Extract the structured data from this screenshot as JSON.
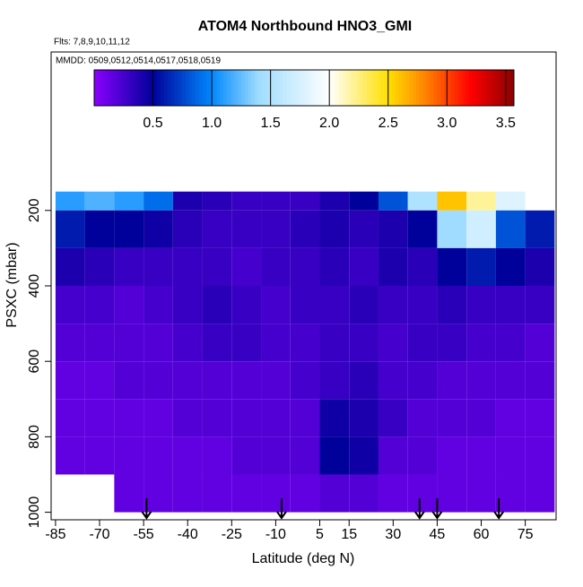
{
  "chart_data": {
    "type": "heatmap",
    "title": "ATOM4 Northbound HNO3_GMI",
    "subtitle": "Flts: 7,8,9,10,11,12",
    "annotation": "MMDD: 0509,0512,0514,0517,0518,0519",
    "x_label": "Latitude (deg N)",
    "y_label": "PSXC (mbar)",
    "xlim": [
      -86.5,
      85.5
    ],
    "xticks": [
      -85,
      -70,
      -55,
      -40,
      -25,
      -10,
      5,
      15,
      30,
      45,
      60,
      75
    ],
    "ylim": [
      1020,
      -220
    ],
    "yticks": [
      200,
      400,
      600,
      800,
      1000
    ],
    "x_edges": [
      -85,
      -75,
      -65,
      -55,
      -45,
      -35,
      -25,
      -15,
      -5,
      5,
      15,
      25,
      35,
      45,
      55,
      65,
      75,
      85
    ],
    "y_edges": [
      150,
      200,
      300,
      400,
      500,
      600,
      700,
      800,
      900,
      1000
    ],
    "z": [
      [
        1.1,
        1.2,
        1.1,
        0.9,
        0.4,
        0.35,
        0.3,
        0.3,
        0.3,
        0.4,
        0.5,
        0.8,
        1.5,
        2.6,
        2.2,
        1.8,
        null
      ],
      [
        0.6,
        0.5,
        0.5,
        0.45,
        0.35,
        0.3,
        0.3,
        0.3,
        0.35,
        0.4,
        0.35,
        0.4,
        0.5,
        1.4,
        1.7,
        0.8,
        0.6
      ],
      [
        0.4,
        0.35,
        0.3,
        0.3,
        0.3,
        0.3,
        0.25,
        0.3,
        0.3,
        0.35,
        0.3,
        0.4,
        0.35,
        0.5,
        0.6,
        0.5,
        0.4
      ],
      [
        0.25,
        0.25,
        0.2,
        0.25,
        0.3,
        0.35,
        0.3,
        0.25,
        0.3,
        0.3,
        0.35,
        0.3,
        0.3,
        0.35,
        0.3,
        0.3,
        0.3
      ],
      [
        0.2,
        0.2,
        0.2,
        0.2,
        0.25,
        0.3,
        0.3,
        0.25,
        0.25,
        0.3,
        0.3,
        0.25,
        0.3,
        0.3,
        0.25,
        0.25,
        0.2
      ],
      [
        0.15,
        0.15,
        0.2,
        0.2,
        0.2,
        0.2,
        0.2,
        0.2,
        0.25,
        0.3,
        0.35,
        0.25,
        0.25,
        0.2,
        0.2,
        0.2,
        0.2
      ],
      [
        0.15,
        0.15,
        0.15,
        0.15,
        0.2,
        0.2,
        0.2,
        0.2,
        0.2,
        0.45,
        0.4,
        0.3,
        0.2,
        0.2,
        0.2,
        0.15,
        0.15
      ],
      [
        0.15,
        0.15,
        0.15,
        0.15,
        0.15,
        0.15,
        0.2,
        0.2,
        0.2,
        0.5,
        0.45,
        0.2,
        0.2,
        0.15,
        0.15,
        0.15,
        0.15
      ],
      [
        null,
        null,
        0.15,
        0.15,
        0.15,
        0.15,
        0.15,
        0.15,
        0.15,
        0.2,
        0.2,
        0.15,
        0.15,
        0.15,
        0.15,
        0.15,
        0.15
      ]
    ],
    "zlim": [
      0,
      3.57
    ],
    "zticks": [
      0.5,
      1.0,
      1.5,
      2.0,
      2.5,
      3.0,
      3.5
    ],
    "colorscale": [
      [
        0,
        "#8a00ff"
      ],
      [
        0.5,
        "#00009a"
      ],
      [
        1.0,
        "#0088ff"
      ],
      [
        1.4,
        "#9fdcff"
      ],
      [
        2.0,
        "#ffffff"
      ],
      [
        2.5,
        "#ffe000"
      ],
      [
        2.8,
        "#ff8800"
      ],
      [
        3.2,
        "#ff0000"
      ],
      [
        3.57,
        "#8b0000"
      ]
    ],
    "arrows": [
      -54,
      -8,
      39,
      45,
      66
    ]
  }
}
